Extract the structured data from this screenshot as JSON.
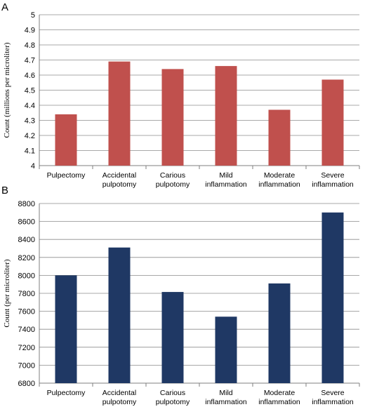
{
  "chart_data": [
    {
      "panel": "A",
      "type": "bar",
      "categories": [
        [
          "Pulpectomy"
        ],
        [
          "Accidental",
          "pulpotomy"
        ],
        [
          "Carious",
          "pulpotomy"
        ],
        [
          "Mild",
          "inflammation"
        ],
        [
          "Moderate",
          "inflammation"
        ],
        [
          "Severe",
          "inflammation"
        ]
      ],
      "values": [
        4.34,
        4.69,
        4.64,
        4.66,
        4.37,
        4.57
      ],
      "ylabel": "Count (millions per microliter)",
      "ylim": [
        4,
        5
      ],
      "yticks": [
        "4",
        "4.1",
        "4.2",
        "4.3",
        "4.4",
        "4.5",
        "4.6",
        "4.7",
        "4.8",
        "4.9",
        "5"
      ],
      "grid": true,
      "bar_color": "#c0504d"
    },
    {
      "panel": "B",
      "type": "bar",
      "categories": [
        [
          "Pulpectomy"
        ],
        [
          "Accidental",
          "pulpotomy"
        ],
        [
          "Carious",
          "pulpotomy"
        ],
        [
          "Mild",
          "inflammation"
        ],
        [
          "Moderate",
          "inflammation"
        ],
        [
          "Severe",
          "inflammation"
        ]
      ],
      "values": [
        8000,
        8310,
        7815,
        7540,
        7910,
        8700
      ],
      "ylabel": "Count (per microliter)",
      "ylim": [
        6800,
        8800
      ],
      "yticks": [
        "6800",
        "7000",
        "7200",
        "7400",
        "7600",
        "7800",
        "8000",
        "8200",
        "8400",
        "8600",
        "8800"
      ],
      "grid": true,
      "bar_color": "#1f3864"
    }
  ]
}
